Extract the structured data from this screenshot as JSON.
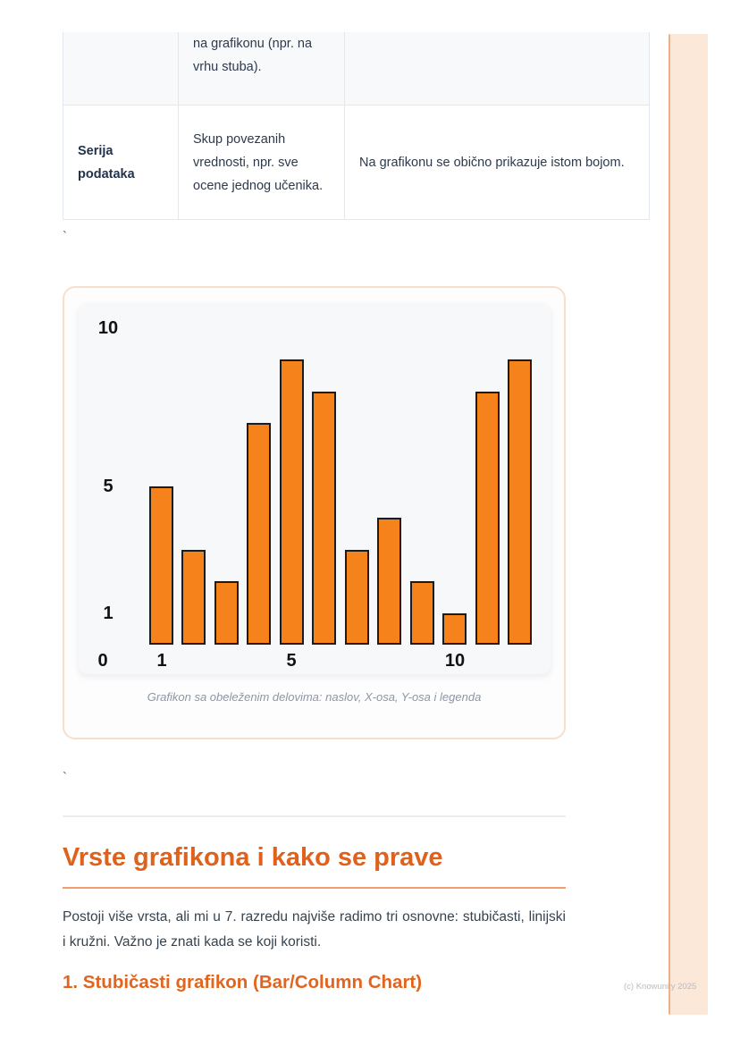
{
  "table": {
    "rows": [
      {
        "term": "",
        "definition": "na grafikonu (npr. na vrhu stuba).",
        "note": ""
      },
      {
        "term": "Serija podataka",
        "definition": "Skup povezanih vrednosti, npr. sve ocene jednog učenika.",
        "note": "Na grafikonu se obično prikazuje istom bojom."
      }
    ]
  },
  "stray_marks": {
    "first": "`",
    "second": "`"
  },
  "figure": {
    "caption": "Grafikon sa obeleženim delovima: naslov, X-osa, Y-osa i legenda"
  },
  "chart_data": {
    "type": "bar",
    "x": [
      1,
      2,
      3,
      4,
      5,
      6,
      7,
      8,
      9,
      10,
      11,
      12
    ],
    "values": [
      5,
      3,
      2,
      7,
      9,
      8,
      3,
      4,
      2,
      1,
      8,
      9
    ],
    "title": "",
    "xlabel": "",
    "ylabel": "",
    "ylim": [
      0,
      10.8
    ],
    "grid": false,
    "legend": "none",
    "bar_color": "#F5821A",
    "bar_edge_color": "#1c1c1c",
    "y_ticks": [
      {
        "label": "10",
        "value": 10
      },
      {
        "label": "5",
        "value": 5
      },
      {
        "label": "1",
        "value": 1
      }
    ],
    "origin_label": "0",
    "x_ticks": [
      {
        "label": "1",
        "index": 0
      },
      {
        "label": "5",
        "index": 4
      },
      {
        "label": "10",
        "index": 9
      }
    ]
  },
  "section": {
    "heading": "Vrste grafikona i kako se prave",
    "paragraph": "Postoji više vrsta, ali mi u 7. razredu najviše radimo tri osnovne: stubičasti, linijski i kružni. Važno je znati kada se koji koristi.",
    "subheading": "1. Stubičasti grafikon (Bar/Column Chart)"
  },
  "footer": {
    "copyright": "(c) Knowunity 2025"
  }
}
